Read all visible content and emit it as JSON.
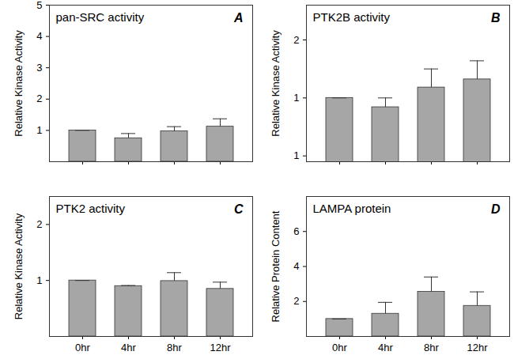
{
  "chart_data": [
    {
      "type": "bar",
      "title": "pan-SRC activity",
      "annotations": [
        "A"
      ],
      "ylabel": "Relative Kinase Activity",
      "categories": [
        "0hr",
        "4hr",
        "8hr",
        "12hr"
      ],
      "values": [
        1.0,
        0.75,
        0.97,
        1.12
      ],
      "errors": [
        0,
        0.15,
        0.15,
        0.25
      ],
      "color": "#a6a6a6",
      "ylim": [
        0,
        5
      ],
      "yticks": [
        1,
        2,
        3,
        4,
        5
      ],
      "tick_labels": "y"
    },
    {
      "type": "bar",
      "title": "PTK2B activity",
      "annotations": [
        "B"
      ],
      "ylabel": "Relative Kinase Activity",
      "categories": [
        "0hr",
        "4hr",
        "8hr",
        "12hr"
      ],
      "values": [
        1.0,
        0.92,
        1.09,
        1.16
      ],
      "errors": [
        0,
        0.08,
        0.16,
        0.16
      ],
      "color": "#a6a6a6",
      "ylim": [
        0.45,
        1.8
      ],
      "yticks": [
        {
          "value": 0.5,
          "label": "1"
        },
        {
          "value": 1,
          "label": "1"
        },
        {
          "value": 1.5,
          "label": "2"
        }
      ],
      "tick_labels": "y"
    },
    {
      "type": "bar",
      "title": "PTK2 activity",
      "annotations": [
        "C"
      ],
      "ylabel": "Relative Kinase Activity",
      "categories": [
        "0hr",
        "4hr",
        "8hr",
        "12hr"
      ],
      "values": [
        1.0,
        0.9,
        0.99,
        0.85
      ],
      "errors": [
        0,
        0.01,
        0.15,
        0.12
      ],
      "color": "#a6a6a6",
      "ylim": [
        0,
        2.5
      ],
      "yticks": [
        1,
        2
      ]
    },
    {
      "type": "bar",
      "title": "LAMPA protein",
      "annotations": [
        "D"
      ],
      "ylabel": "Relative Protein Content",
      "categories": [
        "0hr",
        "4hr",
        "8hr",
        "12hr"
      ],
      "values": [
        1.0,
        1.3,
        2.55,
        1.75
      ],
      "errors": [
        0,
        0.65,
        0.85,
        0.8
      ],
      "color": "#a6a6a6",
      "ylim": [
        0,
        8
      ],
      "yticks": [
        2,
        4,
        6
      ]
    }
  ]
}
